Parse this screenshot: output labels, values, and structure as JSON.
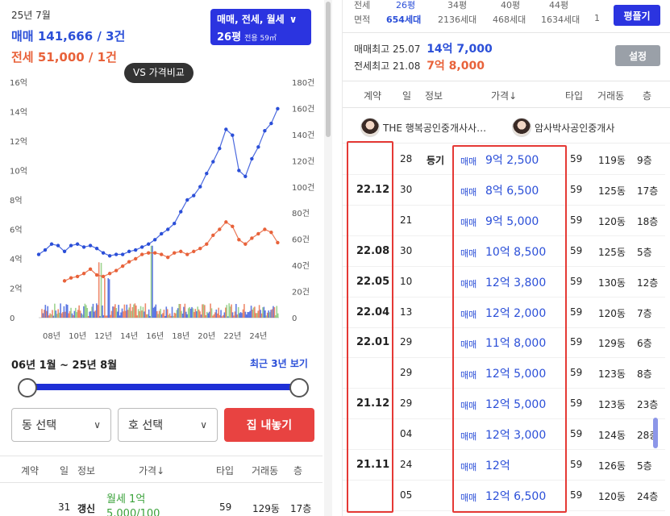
{
  "header": {
    "date": "25년 7월",
    "sale_text": "매매 141,666 / 3건",
    "jeonse_text": "전세 51,000 / 1건",
    "filter_label": "매매, 전세, 월세",
    "pyeong": "26평",
    "area": "전용 59㎡",
    "vs_label": "VS 가격비교"
  },
  "colors": {
    "sale": "#2b4fd8",
    "jeonse": "#e8623a",
    "accent": "#2b34e0",
    "danger": "#e84341",
    "highlight": "#e53935",
    "volume_green": "#7cc46b"
  },
  "chart_data": {
    "type": "line",
    "x_ticks": [
      "08년",
      "10년",
      "12년",
      "14년",
      "16년",
      "18년",
      "20년",
      "22년",
      "24년"
    ],
    "y_left_ticks": [
      "0",
      "2억",
      "4억",
      "6억",
      "8억",
      "10억",
      "12억",
      "14억",
      "16억"
    ],
    "y_right_ticks": [
      "0",
      "20건",
      "40건",
      "60건",
      "80건",
      "100건",
      "120건",
      "140건",
      "160건",
      "180건"
    ],
    "ylim_left": [
      0,
      16
    ],
    "ylim_right": [
      0,
      180
    ],
    "xlim": [
      2007,
      2025.6
    ],
    "series": [
      {
        "name": "매매",
        "color": "#2b4fd8",
        "points": [
          [
            2007.0,
            4.3
          ],
          [
            2007.5,
            4.6
          ],
          [
            2008.0,
            5.0
          ],
          [
            2008.5,
            4.9
          ],
          [
            2009.0,
            4.5
          ],
          [
            2009.5,
            4.9
          ],
          [
            2010.0,
            5.0
          ],
          [
            2010.5,
            4.8
          ],
          [
            2011.0,
            4.9
          ],
          [
            2011.5,
            4.7
          ],
          [
            2012.0,
            4.4
          ],
          [
            2012.5,
            4.2
          ],
          [
            2013.0,
            4.3
          ],
          [
            2013.5,
            4.3
          ],
          [
            2014.0,
            4.5
          ],
          [
            2014.5,
            4.6
          ],
          [
            2015.0,
            4.8
          ],
          [
            2015.5,
            5.0
          ],
          [
            2016.0,
            5.3
          ],
          [
            2016.5,
            5.7
          ],
          [
            2017.0,
            6.0
          ],
          [
            2017.5,
            6.4
          ],
          [
            2018.0,
            7.2
          ],
          [
            2018.5,
            8.0
          ],
          [
            2019.0,
            8.3
          ],
          [
            2019.5,
            8.9
          ],
          [
            2020.0,
            9.8
          ],
          [
            2020.5,
            10.6
          ],
          [
            2021.0,
            11.5
          ],
          [
            2021.5,
            12.8
          ],
          [
            2022.0,
            12.4
          ],
          [
            2022.5,
            10.0
          ],
          [
            2023.0,
            9.6
          ],
          [
            2023.5,
            10.8
          ],
          [
            2024.0,
            11.6
          ],
          [
            2024.5,
            12.7
          ],
          [
            2025.0,
            13.2
          ],
          [
            2025.5,
            14.2
          ]
        ]
      },
      {
        "name": "전세",
        "color": "#e8623a",
        "points": [
          [
            2009.0,
            2.5
          ],
          [
            2009.5,
            2.7
          ],
          [
            2010.0,
            2.8
          ],
          [
            2010.5,
            3.0
          ],
          [
            2011.0,
            3.3
          ],
          [
            2011.5,
            2.9
          ],
          [
            2012.0,
            2.8
          ],
          [
            2012.5,
            3.0
          ],
          [
            2013.0,
            3.2
          ],
          [
            2013.5,
            3.5
          ],
          [
            2014.0,
            3.8
          ],
          [
            2014.5,
            4.0
          ],
          [
            2015.0,
            4.3
          ],
          [
            2015.5,
            4.4
          ],
          [
            2016.0,
            4.4
          ],
          [
            2016.5,
            4.3
          ],
          [
            2017.0,
            4.1
          ],
          [
            2017.5,
            4.4
          ],
          [
            2018.0,
            4.5
          ],
          [
            2018.5,
            4.3
          ],
          [
            2019.0,
            4.5
          ],
          [
            2019.5,
            4.7
          ],
          [
            2020.0,
            5.0
          ],
          [
            2020.5,
            5.6
          ],
          [
            2021.0,
            6.0
          ],
          [
            2021.5,
            6.5
          ],
          [
            2022.0,
            6.2
          ],
          [
            2022.5,
            5.3
          ],
          [
            2023.0,
            5.0
          ],
          [
            2023.5,
            5.4
          ],
          [
            2024.0,
            5.7
          ],
          [
            2024.5,
            6.0
          ],
          [
            2025.0,
            5.8
          ],
          [
            2025.5,
            5.1
          ]
        ]
      }
    ],
    "grid": false,
    "legend": "none"
  },
  "period": {
    "label": "06년 1월 ~ 25년 8월",
    "recent_link": "최근 3년 보기"
  },
  "controls": {
    "dong_select": "동 선택",
    "ho_select": "호 선택",
    "list_button": "집 내놓기"
  },
  "left_table": {
    "headers": [
      "계약",
      "일",
      "정보",
      "가격↓",
      "타입",
      "거래동",
      "층"
    ],
    "row": {
      "day": "31",
      "info": "갱신",
      "type_label": "월세 1억",
      "price": "5,000/100",
      "type": "59",
      "dong": "129동",
      "floor": "17층"
    }
  },
  "area_table": {
    "row1": [
      "전세",
      "26평",
      "34평",
      "40평",
      "44평"
    ],
    "row2": [
      "면적",
      "654세대",
      "2136세대",
      "468세대",
      "1634세대",
      "1"
    ],
    "button": "평플기"
  },
  "max_info": {
    "sale_label": "매매최고",
    "sale_date": "25.07",
    "sale_price": "14억 7,000",
    "jeonse_label": "전세최고",
    "jeonse_date": "21.08",
    "jeonse_price": "7억 8,000",
    "settings": "설정"
  },
  "right_table": {
    "headers": [
      "계약",
      "일",
      "정보",
      "가격↓",
      "타입",
      "거래동",
      "층"
    ],
    "agents": [
      "THE 행복공인중개사사…",
      "암사박사공인중개사"
    ],
    "rows": [
      {
        "ym": "",
        "day": "28",
        "info": "등기",
        "ptype": "매매",
        "price": "9억 2,500",
        "type": "59",
        "dong": "119동",
        "floor": "9층"
      },
      {
        "ym": "22.12",
        "day": "30",
        "info": "",
        "ptype": "매매",
        "price": "8억 6,500",
        "type": "59",
        "dong": "125동",
        "floor": "17층"
      },
      {
        "ym": "",
        "day": "21",
        "info": "",
        "ptype": "매매",
        "price": "9억 5,000",
        "type": "59",
        "dong": "120동",
        "floor": "18층"
      },
      {
        "ym": "22.08",
        "day": "30",
        "info": "",
        "ptype": "매매",
        "price": "10억 8,500",
        "type": "59",
        "dong": "125동",
        "floor": "5층"
      },
      {
        "ym": "22.05",
        "day": "10",
        "info": "",
        "ptype": "매매",
        "price": "12억 3,800",
        "type": "59",
        "dong": "130동",
        "floor": "12층"
      },
      {
        "ym": "22.04",
        "day": "13",
        "info": "",
        "ptype": "매매",
        "price": "12억 2,000",
        "type": "59",
        "dong": "120동",
        "floor": "7층"
      },
      {
        "ym": "22.01",
        "day": "29",
        "info": "",
        "ptype": "매매",
        "price": "11억 8,000",
        "type": "59",
        "dong": "129동",
        "floor": "6층"
      },
      {
        "ym": "",
        "day": "29",
        "info": "",
        "ptype": "매매",
        "price": "12억 5,000",
        "type": "59",
        "dong": "123동",
        "floor": "8층"
      },
      {
        "ym": "21.12",
        "day": "29",
        "info": "",
        "ptype": "매매",
        "price": "12억 5,000",
        "type": "59",
        "dong": "123동",
        "floor": "23층"
      },
      {
        "ym": "",
        "day": "04",
        "info": "",
        "ptype": "매매",
        "price": "12억 3,000",
        "type": "59",
        "dong": "124동",
        "floor": "28층"
      },
      {
        "ym": "21.11",
        "day": "24",
        "info": "",
        "ptype": "매매",
        "price": "12억",
        "type": "59",
        "dong": "126동",
        "floor": "5층"
      },
      {
        "ym": "",
        "day": "05",
        "info": "",
        "ptype": "매매",
        "price": "12억 6,500",
        "type": "59",
        "dong": "120동",
        "floor": "24층"
      }
    ]
  }
}
